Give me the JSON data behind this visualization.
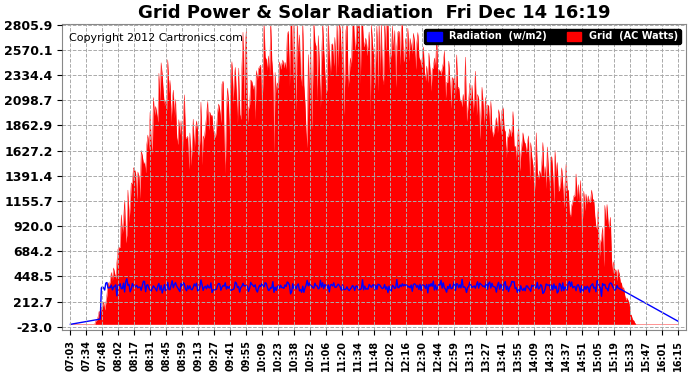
{
  "title": "Grid Power & Solar Radiation  Fri Dec 14 16:19",
  "copyright": "Copyright 2012 Cartronics.com",
  "yticks": [
    -23.0,
    212.7,
    448.5,
    684.2,
    920.0,
    1155.7,
    1391.4,
    1627.2,
    1862.9,
    2098.7,
    2334.4,
    2570.1,
    2805.9
  ],
  "ymin": -23.0,
  "ymax": 2805.9,
  "background_color": "#ffffff",
  "plot_background": "#ffffff",
  "grid_color": "#aaaaaa",
  "grid_style": "--",
  "solar_color": "#ff0000",
  "radiation_color": "#0000ff",
  "legend_solar_label": "Grid  (AC Watts)",
  "legend_rad_label": "Radiation  (w/m2)",
  "title_fontsize": 13,
  "copyright_fontsize": 8,
  "ytick_fontsize": 9,
  "xtick_fontsize": 7,
  "xtick_labels": [
    "07:03",
    "07:34",
    "07:48",
    "08:02",
    "08:17",
    "08:31",
    "08:45",
    "08:59",
    "09:13",
    "09:27",
    "09:41",
    "09:55",
    "10:09",
    "10:23",
    "10:38",
    "10:52",
    "11:06",
    "11:20",
    "11:34",
    "11:48",
    "12:02",
    "12:16",
    "12:30",
    "12:44",
    "12:59",
    "13:13",
    "13:27",
    "13:41",
    "13:55",
    "14:09",
    "14:23",
    "14:37",
    "14:51",
    "15:05",
    "15:19",
    "15:33",
    "15:47",
    "16:01",
    "16:15"
  ]
}
